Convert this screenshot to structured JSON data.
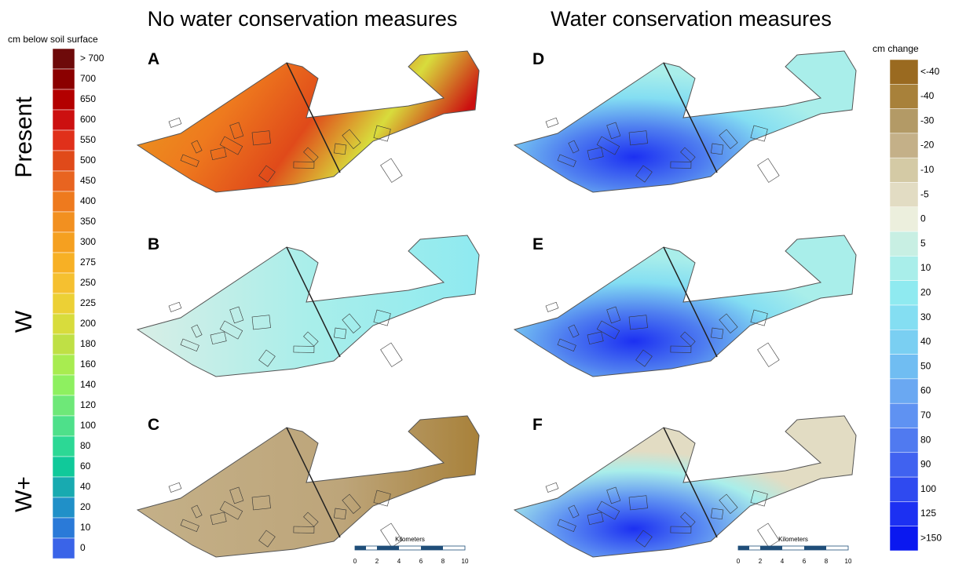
{
  "columns": [
    "No water conservation measures",
    "Water conservation measures"
  ],
  "rows": [
    "Present",
    "W",
    "W+"
  ],
  "panels": [
    "A",
    "B",
    "C",
    "D",
    "E",
    "F"
  ],
  "legend_depth": {
    "title": "cm below soil surface",
    "items": [
      {
        "label": "> 700",
        "color": "#6e0a0a"
      },
      {
        "label": "700",
        "color": "#8b0000"
      },
      {
        "label": "650",
        "color": "#b30000"
      },
      {
        "label": "600",
        "color": "#cc1010"
      },
      {
        "label": "550",
        "color": "#e0301a"
      },
      {
        "label": "500",
        "color": "#e04a1a"
      },
      {
        "label": "450",
        "color": "#e86420"
      },
      {
        "label": "400",
        "color": "#ee7a1e"
      },
      {
        "label": "350",
        "color": "#f29020"
      },
      {
        "label": "300",
        "color": "#f5a020"
      },
      {
        "label": "275",
        "color": "#f7b025"
      },
      {
        "label": "250",
        "color": "#f5c030"
      },
      {
        "label": "225",
        "color": "#ecd035"
      },
      {
        "label": "200",
        "color": "#d8dc3c"
      },
      {
        "label": "180",
        "color": "#bfe045"
      },
      {
        "label": "160",
        "color": "#a8ec50"
      },
      {
        "label": "140",
        "color": "#8ef060"
      },
      {
        "label": "120",
        "color": "#6ee878"
      },
      {
        "label": "100",
        "color": "#4ee08a"
      },
      {
        "label": "80",
        "color": "#2cd895"
      },
      {
        "label": "60",
        "color": "#10c99a"
      },
      {
        "label": "40",
        "color": "#18aab0"
      },
      {
        "label": "20",
        "color": "#2090c8"
      },
      {
        "label": "10",
        "color": "#2a7ad8"
      },
      {
        "label": "0",
        "color": "#3a64e8"
      }
    ]
  },
  "legend_change": {
    "title": "cm change",
    "items": [
      {
        "label": "<-40",
        "color": "#9a6a20"
      },
      {
        "label": "-40",
        "color": "#a8813a"
      },
      {
        "label": "-30",
        "color": "#b39a66"
      },
      {
        "label": "-20",
        "color": "#c4b088"
      },
      {
        "label": "-10",
        "color": "#d4caa5"
      },
      {
        "label": "-5",
        "color": "#e2dcc3"
      },
      {
        "label": "0",
        "color": "#ecefdd"
      },
      {
        "label": "5",
        "color": "#c8efe3"
      },
      {
        "label": "10",
        "color": "#a9eeea"
      },
      {
        "label": "20",
        "color": "#8feaf0"
      },
      {
        "label": "30",
        "color": "#84def2"
      },
      {
        "label": "40",
        "color": "#7acff2"
      },
      {
        "label": "50",
        "color": "#70bdf2"
      },
      {
        "label": "60",
        "color": "#6aa8f2"
      },
      {
        "label": "70",
        "color": "#5f92f2"
      },
      {
        "label": "80",
        "color": "#507af0"
      },
      {
        "label": "90",
        "color": "#4062f0"
      },
      {
        "label": "100",
        "color": "#2f4af0"
      },
      {
        "label": "125",
        "color": "#1c30f2"
      },
      {
        "label": ">150",
        "color": "#0a18f0"
      }
    ]
  },
  "scale_bars": [
    {
      "label": "Kilometers",
      "ticks": [
        0,
        2,
        4,
        6,
        8,
        10
      ]
    },
    {
      "label": "Kilometers",
      "ticks": [
        0,
        2,
        4,
        6,
        8,
        10
      ]
    }
  ]
}
